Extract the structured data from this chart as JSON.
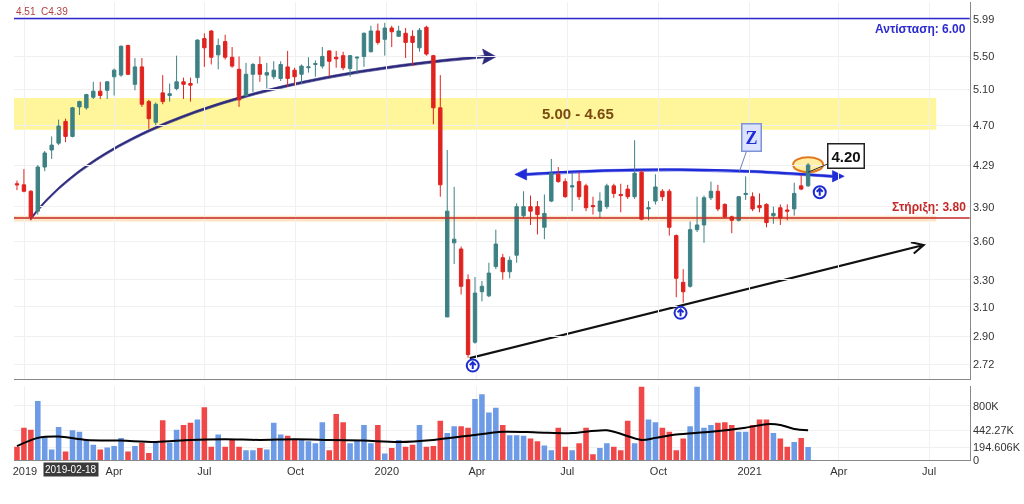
{
  "chart_data": [
    {
      "type": "candlestick",
      "x": [
        "2018-12-24",
        "2018-12-31",
        "2019-01-07",
        "2019-01-14",
        "2019-01-21",
        "2019-01-28",
        "2019-02-04",
        "2019-02-11",
        "2019-02-18",
        "2019-02-25",
        "2019-03-04",
        "2019-03-11",
        "2019-03-18",
        "2019-03-25",
        "2019-04-01",
        "2019-04-08",
        "2019-04-15",
        "2019-04-22",
        "2019-04-29",
        "2019-05-06",
        "2019-05-13",
        "2019-05-20",
        "2019-05-27",
        "2019-06-03",
        "2019-06-10",
        "2019-06-17",
        "2019-06-24",
        "2019-07-01",
        "2019-07-08",
        "2019-07-15",
        "2019-07-22",
        "2019-07-29",
        "2019-08-05",
        "2019-08-12",
        "2019-08-19",
        "2019-08-26",
        "2019-09-02",
        "2019-09-09",
        "2019-09-16",
        "2019-09-23",
        "2019-09-30",
        "2019-10-07",
        "2019-10-14",
        "2019-10-21",
        "2019-10-28",
        "2019-11-04",
        "2019-11-11",
        "2019-11-18",
        "2019-11-25",
        "2019-12-02",
        "2019-12-09",
        "2019-12-16",
        "2019-12-23",
        "2019-12-30",
        "2020-01-06",
        "2020-01-13",
        "2020-01-20",
        "2020-01-27",
        "2020-02-03",
        "2020-02-10",
        "2020-02-17",
        "2020-02-24",
        "2020-03-02",
        "2020-03-09",
        "2020-03-16",
        "2020-03-23",
        "2020-03-30",
        "2020-04-06",
        "2020-04-13",
        "2020-04-20",
        "2020-04-27",
        "2020-05-04",
        "2020-05-11",
        "2020-05-18",
        "2020-05-25",
        "2020-06-01",
        "2020-06-08",
        "2020-06-15",
        "2020-06-22",
        "2020-06-29",
        "2020-07-06",
        "2020-07-13",
        "2020-07-20",
        "2020-07-27",
        "2020-08-03",
        "2020-08-10",
        "2020-08-17",
        "2020-08-24",
        "2020-08-31",
        "2020-09-07",
        "2020-09-14",
        "2020-09-21",
        "2020-09-28",
        "2020-10-05",
        "2020-10-12",
        "2020-10-19",
        "2020-10-26",
        "2020-11-02",
        "2020-11-09",
        "2020-11-16",
        "2020-11-23",
        "2020-11-30",
        "2020-12-07",
        "2020-12-14",
        "2020-12-21",
        "2020-12-28",
        "2021-01-04",
        "2021-01-11",
        "2021-01-18",
        "2021-01-25",
        "2021-02-01",
        "2021-02-08",
        "2021-02-15",
        "2021-02-22",
        "2021-03-01"
      ],
      "ohlc": [
        [
          4.11,
          4.14,
          4.05,
          4.1
        ],
        [
          4.1,
          4.25,
          4.03,
          4.04
        ],
        [
          4.04,
          4.05,
          3.78,
          3.81
        ],
        [
          3.86,
          4.29,
          3.83,
          4.27
        ],
        [
          4.27,
          4.43,
          4.23,
          4.41
        ],
        [
          4.44,
          4.58,
          4.35,
          4.49
        ],
        [
          4.51,
          4.76,
          4.49,
          4.69
        ],
        [
          4.74,
          4.77,
          4.52,
          4.58
        ],
        [
          4.58,
          4.9,
          4.57,
          4.89
        ],
        [
          4.9,
          4.97,
          4.81,
          4.96
        ],
        [
          4.89,
          5.05,
          4.87,
          5.04
        ],
        [
          5.01,
          5.19,
          4.99,
          5.08
        ],
        [
          5.08,
          5.19,
          4.99,
          5.03
        ],
        [
          5.09,
          5.2,
          4.99,
          5.19
        ],
        [
          5.25,
          5.35,
          5.03,
          5.33
        ],
        [
          5.27,
          5.64,
          5.25,
          5.63
        ],
        [
          5.64,
          5.65,
          5.27,
          5.28
        ],
        [
          5.16,
          5.48,
          5.09,
          5.37
        ],
        [
          5.37,
          5.48,
          4.9,
          4.93
        ],
        [
          4.96,
          4.98,
          4.66,
          4.77
        ],
        [
          4.73,
          4.95,
          4.7,
          4.93
        ],
        [
          5.06,
          5.27,
          4.93,
          4.96
        ],
        [
          5.03,
          5.17,
          4.96,
          5.05
        ],
        [
          5.11,
          5.51,
          5.09,
          5.19
        ],
        [
          5.19,
          5.24,
          4.99,
          5.16
        ],
        [
          5.17,
          5.24,
          4.96,
          5.15
        ],
        [
          5.24,
          5.72,
          5.17,
          5.71
        ],
        [
          5.73,
          5.8,
          5.37,
          5.61
        ],
        [
          5.83,
          5.84,
          5.4,
          5.49
        ],
        [
          5.52,
          5.73,
          5.34,
          5.64
        ],
        [
          5.69,
          5.78,
          5.46,
          5.49
        ],
        [
          5.49,
          5.62,
          5.36,
          5.38
        ],
        [
          5.34,
          5.5,
          4.9,
          4.98
        ],
        [
          5.03,
          5.42,
          5.01,
          5.28
        ],
        [
          5.28,
          5.42,
          5.07,
          5.4
        ],
        [
          5.4,
          5.5,
          5.19,
          5.28
        ],
        [
          5.27,
          5.42,
          5.11,
          5.3
        ],
        [
          5.25,
          5.44,
          5.22,
          5.33
        ],
        [
          5.23,
          5.44,
          5.2,
          5.4
        ],
        [
          5.37,
          5.57,
          5.13,
          5.23
        ],
        [
          5.33,
          5.36,
          5.15,
          5.25
        ],
        [
          5.28,
          5.4,
          5.17,
          5.38
        ],
        [
          5.36,
          5.49,
          5.3,
          5.37
        ],
        [
          5.4,
          5.45,
          5.25,
          5.41
        ],
        [
          5.38,
          5.62,
          5.35,
          5.5
        ],
        [
          5.57,
          5.58,
          5.25,
          5.44
        ],
        [
          5.49,
          5.57,
          5.36,
          5.47
        ],
        [
          5.51,
          5.56,
          5.33,
          5.36
        ],
        [
          5.35,
          5.52,
          5.25,
          5.51
        ],
        [
          5.48,
          5.5,
          5.28,
          5.49
        ],
        [
          5.5,
          5.81,
          5.37,
          5.8
        ],
        [
          5.56,
          5.9,
          5.55,
          5.83
        ],
        [
          5.83,
          5.93,
          5.65,
          5.68
        ],
        [
          5.72,
          5.94,
          5.51,
          5.87
        ],
        [
          5.87,
          5.9,
          5.62,
          5.82
        ],
        [
          5.76,
          5.9,
          5.75,
          5.83
        ],
        [
          5.8,
          5.87,
          5.48,
          5.68
        ],
        [
          5.76,
          5.84,
          5.38,
          5.68
        ],
        [
          5.61,
          5.87,
          5.56,
          5.84
        ],
        [
          5.88,
          5.9,
          5.51,
          5.53
        ],
        [
          5.51,
          5.52,
          4.71,
          4.89
        ],
        [
          4.89,
          5.27,
          3.99,
          4.1
        ],
        [
          3.03,
          4.44,
          3.03,
          3.86
        ],
        [
          3.59,
          4.08,
          3.42,
          3.62
        ],
        [
          3.54,
          3.56,
          3.19,
          3.25
        ],
        [
          3.3,
          3.34,
          2.76,
          2.78
        ],
        [
          2.86,
          3.32,
          2.85,
          3.2
        ],
        [
          3.21,
          3.29,
          3.14,
          3.25
        ],
        [
          3.18,
          3.43,
          3.17,
          3.35
        ],
        [
          3.4,
          3.7,
          3.38,
          3.58
        ],
        [
          3.47,
          3.5,
          3.3,
          3.36
        ],
        [
          3.36,
          3.48,
          3.31,
          3.45
        ],
        [
          3.49,
          3.93,
          3.43,
          3.9
        ],
        [
          3.82,
          4.04,
          3.8,
          3.9
        ],
        [
          3.9,
          4.0,
          3.74,
          3.86
        ],
        [
          3.9,
          3.95,
          3.66,
          3.83
        ],
        [
          3.72,
          4.01,
          3.62,
          3.84
        ],
        [
          3.95,
          4.35,
          3.94,
          4.21
        ],
        [
          4.2,
          4.27,
          4.12,
          4.13
        ],
        [
          4.13,
          4.16,
          3.98,
          3.99
        ],
        [
          4.08,
          4.21,
          3.86,
          4.09
        ],
        [
          4.13,
          4.22,
          3.96,
          3.99
        ],
        [
          4.09,
          4.11,
          3.86,
          3.89
        ],
        [
          3.91,
          3.99,
          3.83,
          3.9
        ],
        [
          3.86,
          4.03,
          3.8,
          3.95
        ],
        [
          3.9,
          4.11,
          3.88,
          4.09
        ],
        [
          4.09,
          4.11,
          3.98,
          4.02
        ],
        [
          4.01,
          4.11,
          3.85,
          4.0
        ],
        [
          4.06,
          4.1,
          3.97,
          3.99
        ],
        [
          3.99,
          4.54,
          3.97,
          4.21
        ],
        [
          4.22,
          4.24,
          3.78,
          3.79
        ],
        [
          3.88,
          3.95,
          3.78,
          3.89
        ],
        [
          3.95,
          4.2,
          3.92,
          4.08
        ],
        [
          4.04,
          4.06,
          3.95,
          3.99
        ],
        [
          4.04,
          4.06,
          3.65,
          3.72
        ],
        [
          3.65,
          3.66,
          3.17,
          3.31
        ],
        [
          3.28,
          3.38,
          3.13,
          3.21
        ],
        [
          3.25,
          3.77,
          3.24,
          3.7
        ],
        [
          3.7,
          3.99,
          3.68,
          3.74
        ],
        [
          3.74,
          4.0,
          3.59,
          3.98
        ],
        [
          3.98,
          4.13,
          3.96,
          4.04
        ],
        [
          4.04,
          4.1,
          3.86,
          3.88
        ],
        [
          3.92,
          3.93,
          3.8,
          3.81
        ],
        [
          3.81,
          3.82,
          3.67,
          3.78
        ],
        [
          3.78,
          3.99,
          3.77,
          3.99
        ],
        [
          4.01,
          4.18,
          3.96,
          4.02
        ],
        [
          3.99,
          4.03,
          3.86,
          3.88
        ],
        [
          3.91,
          4.02,
          3.85,
          3.89
        ],
        [
          3.92,
          3.93,
          3.72,
          3.76
        ],
        [
          3.82,
          3.9,
          3.75,
          3.84
        ],
        [
          3.89,
          3.92,
          3.74,
          3.8
        ],
        [
          3.87,
          3.92,
          3.78,
          3.86
        ],
        [
          3.88,
          4.12,
          3.82,
          4.02
        ],
        [
          4.09,
          4.19,
          4.05,
          4.06
        ],
        [
          4.09,
          4.31,
          4.08,
          4.29
        ]
      ],
      "colors": [
        "#e0231f",
        "#e0231f",
        "#e0231f",
        "#3d8184",
        "#3d8184",
        "#3d8184",
        "#3d8184",
        "#e0231f",
        "#3d8184",
        "#3d8184",
        "#3d8184",
        "#3d8184",
        "#e0231f",
        "#3d8184",
        "#3d8184",
        "#3d8184",
        "#e0231f",
        "#3d8184",
        "#e0231f",
        "#e0231f",
        "#3d8184",
        "#e0231f",
        "#3d8184",
        "#3d8184",
        "#e0231f",
        "#e0231f",
        "#3d8184",
        "#e0231f",
        "#e0231f",
        "#3d8184",
        "#e0231f",
        "#e0231f",
        "#e0231f",
        "#3d8184",
        "#3d8184",
        "#e0231f",
        "#3d8184",
        "#3d8184",
        "#3d8184",
        "#e0231f",
        "#e0231f",
        "#3d8184",
        "#3d8184",
        "#3d8184",
        "#3d8184",
        "#e0231f",
        "#e0231f",
        "#e0231f",
        "#3d8184",
        "#3d8184",
        "#3d8184",
        "#3d8184",
        "#e0231f",
        "#3d8184",
        "#e0231f",
        "#3d8184",
        "#e0231f",
        "#e0231f",
        "#3d8184",
        "#e0231f",
        "#e0231f",
        "#e0231f",
        "#3d8184",
        "#3d8184",
        "#e0231f",
        "#e0231f",
        "#3d8184",
        "#3d8184",
        "#3d8184",
        "#3d8184",
        "#e0231f",
        "#3d8184",
        "#3d8184",
        "#3d8184",
        "#e0231f",
        "#e0231f",
        "#3d8184",
        "#3d8184",
        "#e0231f",
        "#e0231f",
        "#3d8184",
        "#e0231f",
        "#e0231f",
        "#e0231f",
        "#3d8184",
        "#3d8184",
        "#e0231f",
        "#e0231f",
        "#e0231f",
        "#3d8184",
        "#e0231f",
        "#3d8184",
        "#3d8184",
        "#e0231f",
        "#e0231f",
        "#e0231f",
        "#e0231f",
        "#3d8184",
        "#3d8184",
        "#3d8184",
        "#3d8184",
        "#e0231f",
        "#e0231f",
        "#e0231f",
        "#3d8184",
        "#3d8184",
        "#e0231f",
        "#e0231f",
        "#e0231f",
        "#3d8184",
        "#e0231f",
        "#e0231f",
        "#3d8184",
        "#e0231f",
        "#3d8184"
      ],
      "xlim": [
        "2018-12-21",
        "2021-08-11"
      ],
      "xticks": [
        {
          "value": "2019-01-01",
          "label": null
        },
        {
          "value": "2019-04-01",
          "label": null
        },
        {
          "value": "2019-07-01",
          "label": null
        },
        {
          "value": "2019-10-01",
          "label": null
        },
        {
          "value": "2020-01-01",
          "label": null
        },
        {
          "value": "2020-04-01",
          "label": null
        },
        {
          "value": "2020-07-01",
          "label": null
        },
        {
          "value": "2020-10-01",
          "label": null
        },
        {
          "value": "2021-01-01",
          "label": null
        },
        {
          "value": "2021-04-01",
          "label": null
        },
        {
          "value": "2021-07-01",
          "label": null
        }
      ],
      "ylim": [
        2.63,
        6.23
      ],
      "yticks": [
        {
          "value": 2.72,
          "label": "2.72"
        },
        {
          "value": 2.9,
          "label": "2.90"
        },
        {
          "value": 3.1,
          "label": "3.10"
        },
        {
          "value": 3.3,
          "label": "3.30"
        },
        {
          "value": 3.6,
          "label": "3.60"
        },
        {
          "value": 3.9,
          "label": "3.90"
        },
        4.29,
        {
          "value": 4.7,
          "label": "4.70"
        },
        {
          "value": 5.1,
          "label": "5.10"
        },
        {
          "value": 5.5,
          "label": "5.50"
        },
        5.99
      ],
      "log": true,
      "grid": true,
      "tick_labels": "y",
      "ref_lines": [
        {
          "axis": "y",
          "value": 6.0,
          "label": "Αντίσταση: 6.00",
          "color": "#2b2bd0"
        },
        {
          "axis": "y",
          "value": 3.8,
          "label": "Στήριξη: 3.80",
          "color": "#c62828"
        }
      ],
      "bands": [
        {
          "axis": "y",
          "from": 4.65,
          "to": 5.0,
          "label": "5.00 - 4.65",
          "color": "#fff59a"
        },
        {
          "axis": "y",
          "from": 3.77,
          "to": 3.82,
          "color": "#fde4c4"
        }
      ],
      "annotations": [
        "4.51  C4.39",
        "Z",
        {
          "text": "4.20",
          "x": "2021-03-01",
          "y": 4.22
        }
      ]
    },
    {
      "type": "bar",
      "x": [
        "2018-12-24",
        "2018-12-31",
        "2019-01-07",
        "2019-01-14",
        "2019-01-21",
        "2019-01-28",
        "2019-02-04",
        "2019-02-11",
        "2019-02-18",
        "2019-02-25",
        "2019-03-04",
        "2019-03-11",
        "2019-03-18",
        "2019-03-25",
        "2019-04-01",
        "2019-04-08",
        "2019-04-15",
        "2019-04-22",
        "2019-04-29",
        "2019-05-06",
        "2019-05-13",
        "2019-05-20",
        "2019-05-27",
        "2019-06-03",
        "2019-06-10",
        "2019-06-17",
        "2019-06-24",
        "2019-07-01",
        "2019-07-08",
        "2019-07-15",
        "2019-07-22",
        "2019-07-29",
        "2019-08-05",
        "2019-08-12",
        "2019-08-19",
        "2019-08-26",
        "2019-09-02",
        "2019-09-09",
        "2019-09-16",
        "2019-09-23",
        "2019-09-30",
        "2019-10-07",
        "2019-10-14",
        "2019-10-21",
        "2019-10-28",
        "2019-11-04",
        "2019-11-11",
        "2019-11-18",
        "2019-11-25",
        "2019-12-02",
        "2019-12-09",
        "2019-12-16",
        "2019-12-23",
        "2019-12-30",
        "2020-01-06",
        "2020-01-13",
        "2020-01-20",
        "2020-01-27",
        "2020-02-03",
        "2020-02-10",
        "2020-02-17",
        "2020-02-24",
        "2020-03-02",
        "2020-03-09",
        "2020-03-16",
        "2020-03-23",
        "2020-03-30",
        "2020-04-06",
        "2020-04-13",
        "2020-04-20",
        "2020-04-27",
        "2020-05-04",
        "2020-05-11",
        "2020-05-18",
        "2020-05-25",
        "2020-06-01",
        "2020-06-08",
        "2020-06-15",
        "2020-06-22",
        "2020-06-29",
        "2020-07-06",
        "2020-07-13",
        "2020-07-20",
        "2020-07-27",
        "2020-08-03",
        "2020-08-10",
        "2020-08-17",
        "2020-08-24",
        "2020-08-31",
        "2020-09-07",
        "2020-09-14",
        "2020-09-21",
        "2020-09-28",
        "2020-10-05",
        "2020-10-12",
        "2020-10-19",
        "2020-10-26",
        "2020-11-02",
        "2020-11-09",
        "2020-11-16",
        "2020-11-23",
        "2020-11-30",
        "2020-12-07",
        "2020-12-14",
        "2020-12-21",
        "2020-12-28",
        "2021-01-04",
        "2021-01-11",
        "2021-01-18",
        "2021-01-25",
        "2021-02-01",
        "2021-02-08",
        "2021-02-15",
        "2021-02-22",
        "2021-03-01"
      ],
      "series": [
        {
          "type": "bar",
          "values": [
            200000,
            480000,
            450000,
            870000,
            350000,
            160000,
            490000,
            130000,
            440000,
            420000,
            300000,
            230000,
            160000,
            190000,
            210000,
            330000,
            130000,
            210000,
            260000,
            110000,
            280000,
            590000,
            260000,
            450000,
            520000,
            550000,
            600000,
            780000,
            200000,
            380000,
            200000,
            300000,
            200000,
            150000,
            150000,
            180000,
            160000,
            550000,
            380000,
            360000,
            300000,
            300000,
            280000,
            250000,
            560000,
            150000,
            680000,
            560000,
            250000,
            300000,
            520000,
            250000,
            520000,
            100000,
            180000,
            300000,
            200000,
            230000,
            520000,
            200000,
            210000,
            580000,
            400000,
            500000,
            500000,
            480000,
            900000,
            970000,
            700000,
            770000,
            520000,
            370000,
            370000,
            360000,
            320000,
            280000,
            220000,
            150000,
            480000,
            200000,
            150000,
            250000,
            480000,
            90000,
            180000,
            250000,
            200000,
            150000,
            580000,
            250000,
            1080000,
            600000,
            560000,
            480000,
            420000,
            150000,
            320000,
            500000,
            1080000,
            480000,
            520000,
            550000,
            560000,
            520000,
            420000,
            420000,
            520000,
            600000,
            600000,
            400000,
            320000,
            200000,
            270000,
            330000,
            194606
          ],
          "colors": [
            "#f04848",
            "#f04848",
            "#f04848",
            "#6d9be6",
            "#6d9be6",
            "#6d9be6",
            "#6d9be6",
            "#f04848",
            "#6d9be6",
            "#6d9be6",
            "#6d9be6",
            "#6d9be6",
            "#f04848",
            "#6d9be6",
            "#6d9be6",
            "#6d9be6",
            "#f04848",
            "#6d9be6",
            "#f04848",
            "#f04848",
            "#6d9be6",
            "#f04848",
            "#6d9be6",
            "#6d9be6",
            "#f04848",
            "#f04848",
            "#6d9be6",
            "#f04848",
            "#f04848",
            "#6d9be6",
            "#f04848",
            "#f04848",
            "#f04848",
            "#6d9be6",
            "#6d9be6",
            "#f04848",
            "#6d9be6",
            "#6d9be6",
            "#6d9be6",
            "#f04848",
            "#f04848",
            "#6d9be6",
            "#6d9be6",
            "#6d9be6",
            "#6d9be6",
            "#f04848",
            "#f04848",
            "#f04848",
            "#6d9be6",
            "#6d9be6",
            "#6d9be6",
            "#6d9be6",
            "#f04848",
            "#6d9be6",
            "#f04848",
            "#6d9be6",
            "#f04848",
            "#f04848",
            "#6d9be6",
            "#f04848",
            "#f04848",
            "#f04848",
            "#6d9be6",
            "#6d9be6",
            "#f04848",
            "#f04848",
            "#6d9be6",
            "#6d9be6",
            "#6d9be6",
            "#6d9be6",
            "#f04848",
            "#6d9be6",
            "#6d9be6",
            "#6d9be6",
            "#f04848",
            "#f04848",
            "#6d9be6",
            "#6d9be6",
            "#f04848",
            "#f04848",
            "#6d9be6",
            "#f04848",
            "#f04848",
            "#f04848",
            "#6d9be6",
            "#6d9be6",
            "#f04848",
            "#f04848",
            "#f04848",
            "#6d9be6",
            "#f04848",
            "#6d9be6",
            "#6d9be6",
            "#f04848",
            "#f04848",
            "#f04848",
            "#f04848",
            "#6d9be6",
            "#6d9be6",
            "#6d9be6",
            "#6d9be6",
            "#f04848",
            "#f04848",
            "#f04848",
            "#6d9be6",
            "#6d9be6",
            "#f04848",
            "#f04848",
            "#f04848",
            "#6d9be6",
            "#f04848",
            "#f04848",
            "#6d9be6",
            "#f04848",
            "#6d9be6"
          ]
        },
        {
          "type": "line",
          "color": "#000000",
          "x": [
            "2018-12-24",
            "2019-01-14",
            "2019-02-04",
            "2019-03-04",
            "2019-04-08",
            "2019-05-13",
            "2019-06-17",
            "2019-07-22",
            "2019-08-26",
            "2019-09-30",
            "2019-11-04",
            "2019-12-09",
            "2020-01-13",
            "2020-02-17",
            "2020-03-23",
            "2020-04-27",
            "2020-06-01",
            "2020-07-06",
            "2020-08-10",
            "2020-09-14",
            "2020-09-28",
            "2020-10-19",
            "2020-11-23",
            "2020-12-28",
            "2021-01-18",
            "2021-02-01",
            "2021-02-15",
            "2021-03-01"
          ],
          "values": [
            210000,
            330000,
            350000,
            300000,
            290000,
            270000,
            300000,
            310000,
            300000,
            310000,
            300000,
            290000,
            270000,
            300000,
            360000,
            420000,
            410000,
            400000,
            440000,
            300000,
            330000,
            380000,
            420000,
            480000,
            530000,
            520000,
            460000,
            442270
          ]
        }
      ],
      "xlim": [
        "2018-12-21",
        "2021-08-11"
      ],
      "xticks": [
        {
          "value": "2019-01-01",
          "label": "2019"
        },
        {
          "value": "2019-04-01",
          "label": "Apr"
        },
        {
          "value": "2019-07-01",
          "label": "Jul"
        },
        {
          "value": "2019-10-01",
          "label": "Oct"
        },
        {
          "value": "2020-01-01",
          "label": "2020"
        },
        {
          "value": "2020-04-01",
          "label": "Apr"
        },
        {
          "value": "2020-07-01",
          "label": "Jul"
        },
        {
          "value": "2020-10-01",
          "label": "Oct"
        },
        {
          "value": "2021-01-01",
          "label": "2021"
        },
        {
          "value": "2021-04-01",
          "label": "Apr"
        },
        {
          "value": "2021-07-01",
          "label": "Jul"
        }
      ],
      "ylim": [
        0,
        1090000
      ],
      "yticks": [
        0,
        {
          "value": 194606,
          "label": "194.606K"
        },
        {
          "value": 442270,
          "label": "442.27K"
        },
        {
          "value": 800000,
          "label": "800K"
        }
      ],
      "grid": true,
      "annotations": [
        "2019-02-18"
      ]
    }
  ]
}
